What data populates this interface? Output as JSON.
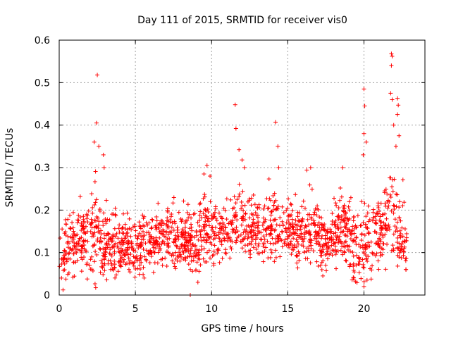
{
  "chart_data": {
    "type": "scatter",
    "title": "Day 111 of 2015, SRMTID for receiver vis0",
    "xlabel": "GPS time / hours",
    "ylabel": "SRMTID / TECUs",
    "xlim": [
      0,
      24
    ],
    "ylim": [
      0,
      0.6
    ],
    "x_ticks": [
      0,
      5,
      10,
      15,
      20
    ],
    "x_tick_labels": [
      "0",
      "5",
      "10",
      "15",
      "20"
    ],
    "y_ticks": [
      0,
      0.1,
      0.2,
      0.3,
      0.4,
      0.5,
      0.6
    ],
    "y_tick_labels": [
      "0",
      "0.1",
      "0.2",
      "0.3",
      "0.4",
      "0.5",
      "0.6"
    ],
    "grid": true,
    "marker": "+",
    "color": "#ff0000",
    "x_extent": [
      0.0,
      22.8
    ],
    "trend": [
      {
        "x": 0.0,
        "y_mean": 0.09,
        "spread": 0.045
      },
      {
        "x": 0.5,
        "y_mean": 0.11,
        "spread": 0.05
      },
      {
        "x": 1.0,
        "y_mean": 0.12,
        "spread": 0.055
      },
      {
        "x": 1.5,
        "y_mean": 0.13,
        "spread": 0.055
      },
      {
        "x": 2.0,
        "y_mean": 0.14,
        "spread": 0.065
      },
      {
        "x": 2.5,
        "y_mean": 0.15,
        "spread": 0.08
      },
      {
        "x": 3.0,
        "y_mean": 0.12,
        "spread": 0.055
      },
      {
        "x": 4.0,
        "y_mean": 0.11,
        "spread": 0.045
      },
      {
        "x": 5.0,
        "y_mean": 0.11,
        "spread": 0.045
      },
      {
        "x": 6.0,
        "y_mean": 0.13,
        "spread": 0.045
      },
      {
        "x": 7.0,
        "y_mean": 0.15,
        "spread": 0.05
      },
      {
        "x": 8.0,
        "y_mean": 0.12,
        "spread": 0.045
      },
      {
        "x": 9.0,
        "y_mean": 0.12,
        "spread": 0.055
      },
      {
        "x": 9.5,
        "y_mean": 0.16,
        "spread": 0.06
      },
      {
        "x": 10.0,
        "y_mean": 0.15,
        "spread": 0.05
      },
      {
        "x": 11.0,
        "y_mean": 0.14,
        "spread": 0.045
      },
      {
        "x": 11.8,
        "y_mean": 0.19,
        "spread": 0.07
      },
      {
        "x": 12.5,
        "y_mean": 0.15,
        "spread": 0.05
      },
      {
        "x": 13.5,
        "y_mean": 0.15,
        "spread": 0.055
      },
      {
        "x": 14.3,
        "y_mean": 0.17,
        "spread": 0.06
      },
      {
        "x": 15.5,
        "y_mean": 0.14,
        "spread": 0.05
      },
      {
        "x": 16.5,
        "y_mean": 0.16,
        "spread": 0.055
      },
      {
        "x": 17.5,
        "y_mean": 0.11,
        "spread": 0.045
      },
      {
        "x": 18.5,
        "y_mean": 0.16,
        "spread": 0.06
      },
      {
        "x": 19.5,
        "y_mean": 0.11,
        "spread": 0.05
      },
      {
        "x": 20.0,
        "y_mean": 0.12,
        "spread": 0.07
      },
      {
        "x": 21.0,
        "y_mean": 0.14,
        "spread": 0.06
      },
      {
        "x": 21.8,
        "y_mean": 0.22,
        "spread": 0.08
      },
      {
        "x": 22.3,
        "y_mean": 0.13,
        "spread": 0.06
      },
      {
        "x": 22.8,
        "y_mean": 0.11,
        "spread": 0.04
      }
    ],
    "highlighted_points": [
      {
        "x": 2.3,
        "y": 0.36
      },
      {
        "x": 2.45,
        "y": 0.405
      },
      {
        "x": 2.5,
        "y": 0.518
      },
      {
        "x": 2.6,
        "y": 0.35
      },
      {
        "x": 2.9,
        "y": 0.33
      },
      {
        "x": 2.95,
        "y": 0.3
      },
      {
        "x": 9.5,
        "y": 0.285
      },
      {
        "x": 9.7,
        "y": 0.305
      },
      {
        "x": 9.9,
        "y": 0.28
      },
      {
        "x": 11.55,
        "y": 0.448
      },
      {
        "x": 11.6,
        "y": 0.392
      },
      {
        "x": 11.8,
        "y": 0.342
      },
      {
        "x": 12.0,
        "y": 0.318
      },
      {
        "x": 12.15,
        "y": 0.3
      },
      {
        "x": 14.2,
        "y": 0.407
      },
      {
        "x": 14.35,
        "y": 0.35
      },
      {
        "x": 14.4,
        "y": 0.3
      },
      {
        "x": 16.5,
        "y": 0.3
      },
      {
        "x": 18.6,
        "y": 0.3
      },
      {
        "x": 20.0,
        "y": 0.485
      },
      {
        "x": 20.05,
        "y": 0.445
      },
      {
        "x": 20.0,
        "y": 0.38
      },
      {
        "x": 19.95,
        "y": 0.33
      },
      {
        "x": 20.15,
        "y": 0.36
      },
      {
        "x": 21.8,
        "y": 0.568
      },
      {
        "x": 21.85,
        "y": 0.562
      },
      {
        "x": 21.8,
        "y": 0.54
      },
      {
        "x": 21.75,
        "y": 0.475
      },
      {
        "x": 21.85,
        "y": 0.46
      },
      {
        "x": 21.95,
        "y": 0.4
      },
      {
        "x": 22.2,
        "y": 0.463
      },
      {
        "x": 22.25,
        "y": 0.447
      },
      {
        "x": 22.2,
        "y": 0.425
      },
      {
        "x": 22.3,
        "y": 0.375
      },
      {
        "x": 22.1,
        "y": 0.35
      },
      {
        "x": 8.6,
        "y": 0.0
      },
      {
        "x": 20.0,
        "y": 0.02
      },
      {
        "x": 9.1,
        "y": 0.03
      },
      {
        "x": 20.2,
        "y": 0.035
      },
      {
        "x": 0.15,
        "y": 0.04
      },
      {
        "x": 17.3,
        "y": 0.045
      }
    ]
  }
}
